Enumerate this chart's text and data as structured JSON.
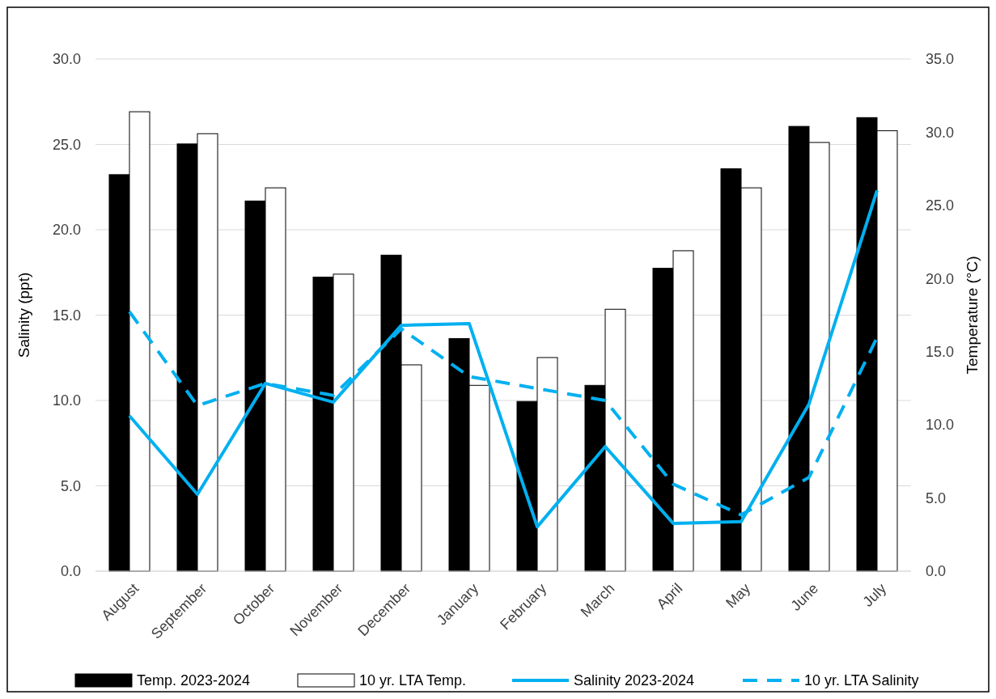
{
  "chart_data": {
    "type": "bar",
    "categories": [
      "August",
      "September",
      "October",
      "November",
      "December",
      "January",
      "February",
      "March",
      "April",
      "May",
      "June",
      "July"
    ],
    "ylabel": "Salinity (ppt)",
    "y2label": "Temperature (°C)",
    "ylim": [
      0,
      30
    ],
    "yticks": [
      {
        "value": 0,
        "label": "0.0"
      },
      {
        "value": 5,
        "label": "5.0"
      },
      {
        "value": 10,
        "label": "10.0"
      },
      {
        "value": 15,
        "label": "15.0"
      },
      {
        "value": 20,
        "label": "20.0"
      },
      {
        "value": 25,
        "label": "25.0"
      },
      {
        "value": 30,
        "label": "30.0"
      }
    ],
    "y2lim": [
      0,
      35
    ],
    "y2ticks": [
      {
        "value": 0,
        "label": "0.0"
      },
      {
        "value": 5,
        "label": "5.0"
      },
      {
        "value": 10,
        "label": "10.0"
      },
      {
        "value": 15,
        "label": "15.0"
      },
      {
        "value": 20,
        "label": "20.0"
      },
      {
        "value": 25,
        "label": "25.0"
      },
      {
        "value": 30,
        "label": "30.0"
      },
      {
        "value": 35,
        "label": "35.0"
      }
    ],
    "grid": "y",
    "legend": "bottom",
    "series": [
      {
        "name": "Temp. 2023-2024",
        "axis": "y2",
        "color": "#000000",
        "values": [
          27.1,
          29.2,
          25.3,
          20.1,
          21.6,
          15.9,
          11.6,
          12.7,
          20.7,
          27.5,
          30.4,
          31.0
        ]
      },
      {
        "name": "10 yr. LTA Temp.",
        "axis": "y2",
        "color": "#ffffff",
        "values": [
          31.4,
          29.9,
          26.2,
          20.3,
          14.1,
          12.7,
          14.6,
          17.9,
          21.9,
          26.2,
          29.3,
          30.1
        ]
      },
      {
        "name": "Salinity 2023-2024",
        "type": "line",
        "axis": "y",
        "color": "#00b0f0",
        "line_style": "solid",
        "values": [
          9.1,
          4.5,
          11.0,
          9.9,
          14.4,
          14.5,
          2.6,
          7.3,
          2.8,
          2.9,
          9.8,
          22.3
        ]
      },
      {
        "name": "10 yr. LTA Salinity",
        "type": "line",
        "axis": "y",
        "color": "#00b0f0",
        "line_style": "dashed",
        "values": [
          15.2,
          9.7,
          11.0,
          10.3,
          14.2,
          11.4,
          10.7,
          10.0,
          5.1,
          3.3,
          5.5,
          13.7
        ]
      }
    ]
  }
}
